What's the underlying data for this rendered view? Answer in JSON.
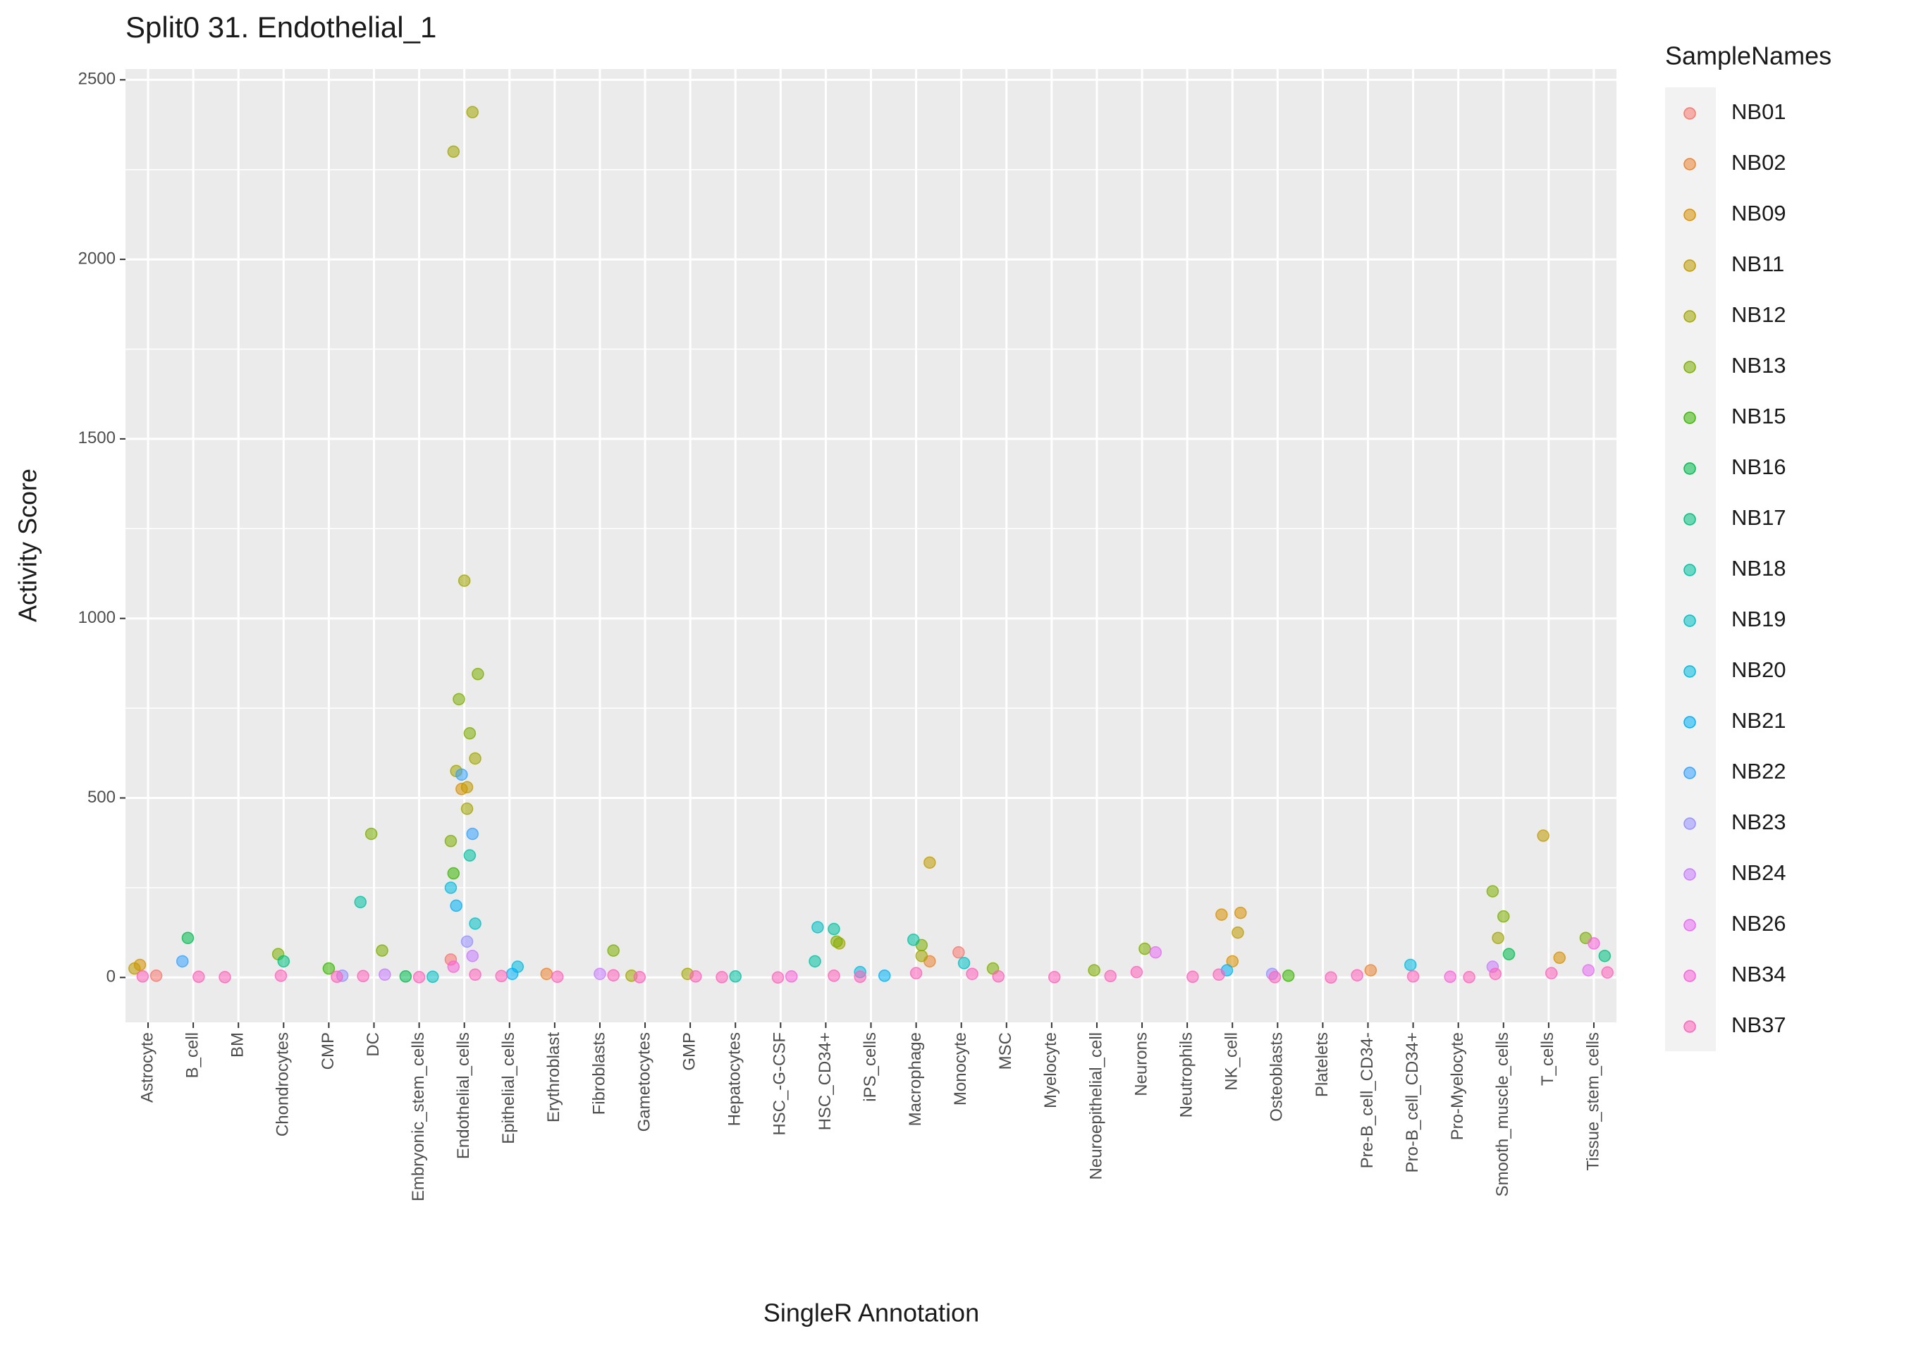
{
  "chart_data": {
    "type": "scatter",
    "title": "Split0 31. Endothelial_1",
    "x_label": "SingleR Annotation",
    "y_label": "Activity Score",
    "legend_title": "SampleNames",
    "categories": [
      "Astrocyte",
      "B_cell",
      "BM",
      "Chondrocytes",
      "CMP",
      "DC",
      "Embryonic_stem_cells",
      "Endothelial_cells",
      "Epithelial_cells",
      "Erythroblast",
      "Fibroblasts",
      "Gametocytes",
      "GMP",
      "Hepatocytes",
      "HSC_-G-CSF",
      "HSC_CD34+",
      "iPS_cells",
      "Macrophage",
      "Monocyte",
      "MSC",
      "Myelocyte",
      "Neuroepithelial_cell",
      "Neurons",
      "Neutrophils",
      "NK_cell",
      "Osteoblasts",
      "Platelets",
      "Pre-B_cell_CD34-",
      "Pro-B_cell_CD34+",
      "Pro-Myelocyte",
      "Smooth_muscle_cells",
      "T_cells",
      "Tissue_stem_cells"
    ],
    "ylim": [
      -125,
      2530
    ],
    "yticks": [
      0,
      500,
      1000,
      1500,
      2000,
      2500
    ],
    "grid": true,
    "legend_position": "right",
    "series": [
      {
        "name": "NB01",
        "color": "#F8766D",
        "x": [
          "Endothelial_cells",
          "Monocyte",
          "Astrocyte"
        ],
        "values": [
          50,
          70,
          5
        ]
      },
      {
        "name": "NB02",
        "color": "#EA8331",
        "x": [
          "Erythroblast",
          "Pre-B_cell_CD34-",
          "Macrophage"
        ],
        "values": [
          10,
          20,
          45
        ]
      },
      {
        "name": "NB09",
        "color": "#D89000",
        "x": [
          "Endothelial_cells",
          "NK_cell",
          "NK_cell",
          "NK_cell",
          "T_cells",
          "Astrocyte"
        ],
        "values": [
          525,
          180,
          175,
          45,
          55,
          35
        ]
      },
      {
        "name": "NB11",
        "color": "#C09B00",
        "x": [
          "Endothelial_cells",
          "Macrophage",
          "T_cells",
          "NK_cell",
          "Astrocyte"
        ],
        "values": [
          530,
          320,
          395,
          125,
          25
        ]
      },
      {
        "name": "NB12",
        "color": "#A3A500",
        "x": [
          "Endothelial_cells",
          "Endothelial_cells",
          "Endothelial_cells",
          "Endothelial_cells",
          "Endothelial_cells",
          "Endothelial_cells",
          "HSC_CD34+",
          "Smooth_muscle_cells",
          "Macrophage",
          "Gametocytes",
          "GMP"
        ],
        "values": [
          2410,
          2300,
          1105,
          610,
          575,
          470,
          95,
          110,
          60,
          5,
          10
        ]
      },
      {
        "name": "NB13",
        "color": "#7CAE00",
        "x": [
          "Endothelial_cells",
          "Endothelial_cells",
          "Endothelial_cells",
          "Endothelial_cells",
          "DC",
          "DC",
          "Smooth_muscle_cells",
          "Smooth_muscle_cells",
          "HSC_CD34+",
          "Tissue_stem_cells",
          "Neurons",
          "Fibroblasts",
          "Chondrocytes",
          "Macrophage",
          "MSC",
          "Neuroepithelial_cell"
        ],
        "values": [
          845,
          775,
          680,
          380,
          400,
          75,
          240,
          170,
          100,
          110,
          80,
          75,
          65,
          90,
          25,
          20
        ]
      },
      {
        "name": "NB15",
        "color": "#39B600",
        "x": [
          "Endothelial_cells",
          "CMP",
          "Osteoblasts"
        ],
        "values": [
          290,
          25,
          5
        ]
      },
      {
        "name": "NB16",
        "color": "#00BB4E",
        "x": [
          "B_cell",
          "Smooth_muscle_cells",
          "Embryonic_stem_cells"
        ],
        "values": [
          110,
          65,
          3
        ]
      },
      {
        "name": "NB17",
        "color": "#00BF7D",
        "x": [
          "Chondrocytes",
          "Tissue_stem_cells"
        ],
        "values": [
          45,
          60
        ]
      },
      {
        "name": "NB18",
        "color": "#00C1A3",
        "x": [
          "Endothelial_cells",
          "DC",
          "Macrophage",
          "HSC_CD34+",
          "HSC_CD34+",
          "Hepatocytes"
        ],
        "values": [
          340,
          210,
          105,
          135,
          45,
          3
        ]
      },
      {
        "name": "NB19",
        "color": "#00BFC4",
        "x": [
          "Endothelial_cells",
          "HSC_CD34+",
          "Monocyte",
          "Embryonic_stem_cells"
        ],
        "values": [
          150,
          140,
          40,
          2
        ]
      },
      {
        "name": "NB20",
        "color": "#00BAE0",
        "x": [
          "Endothelial_cells",
          "Pro-B_cell_CD34+",
          "Epithelial_cells",
          "iPS_cells"
        ],
        "values": [
          250,
          35,
          30,
          15
        ]
      },
      {
        "name": "NB21",
        "color": "#00B0F6",
        "x": [
          "Endothelial_cells",
          "Epithelial_cells",
          "iPS_cells",
          "NK_cell"
        ],
        "values": [
          200,
          10,
          5,
          20
        ]
      },
      {
        "name": "NB22",
        "color": "#35A2FF",
        "x": [
          "Endothelial_cells",
          "Endothelial_cells",
          "B_cell"
        ],
        "values": [
          565,
          400,
          45
        ]
      },
      {
        "name": "NB23",
        "color": "#9590FF",
        "x": [
          "Endothelial_cells",
          "CMP",
          "Osteoblasts"
        ],
        "values": [
          100,
          5,
          10
        ]
      },
      {
        "name": "NB24",
        "color": "#C77CFF",
        "x": [
          "Endothelial_cells",
          "Smooth_muscle_cells",
          "Fibroblasts",
          "DC"
        ],
        "values": [
          60,
          30,
          10,
          8
        ]
      },
      {
        "name": "NB26",
        "color": "#E76BF3",
        "x": [
          "Neurons",
          "Tissue_stem_cells"
        ],
        "values": [
          70,
          20
        ]
      },
      {
        "name": "NB34",
        "color": "#FA62DB",
        "x": [
          "Endothelial_cells",
          "Tissue_stem_cells",
          "HSC_-G-CSF",
          "Pro-Myelocyte"
        ],
        "values": [
          30,
          95,
          3,
          2
        ]
      },
      {
        "name": "NB37",
        "color": "#FF62BC",
        "x": [
          "Astrocyte",
          "B_cell",
          "BM",
          "Chondrocytes",
          "CMP",
          "DC",
          "Embryonic_stem_cells",
          "Endothelial_cells",
          "Epithelial_cells",
          "Erythroblast",
          "Fibroblasts",
          "Gametocytes",
          "GMP",
          "Hepatocytes",
          "HSC_-G-CSF",
          "HSC_CD34+",
          "iPS_cells",
          "Macrophage",
          "Monocyte",
          "MSC",
          "Myelocyte",
          "Neuroepithelial_cell",
          "Neurons",
          "Neutrophils",
          "NK_cell",
          "Osteoblasts",
          "Platelets",
          "Pre-B_cell_CD34-",
          "Pro-B_cell_CD34+",
          "Pro-Myelocyte",
          "Smooth_muscle_cells",
          "T_cells",
          "Tissue_stem_cells"
        ],
        "values": [
          3,
          2,
          1,
          5,
          2,
          4,
          1,
          8,
          4,
          2,
          6,
          1,
          3,
          1,
          0,
          5,
          2,
          12,
          10,
          3,
          1,
          4,
          15,
          2,
          8,
          1,
          0,
          6,
          3,
          1,
          10,
          12,
          14
        ]
      }
    ]
  }
}
